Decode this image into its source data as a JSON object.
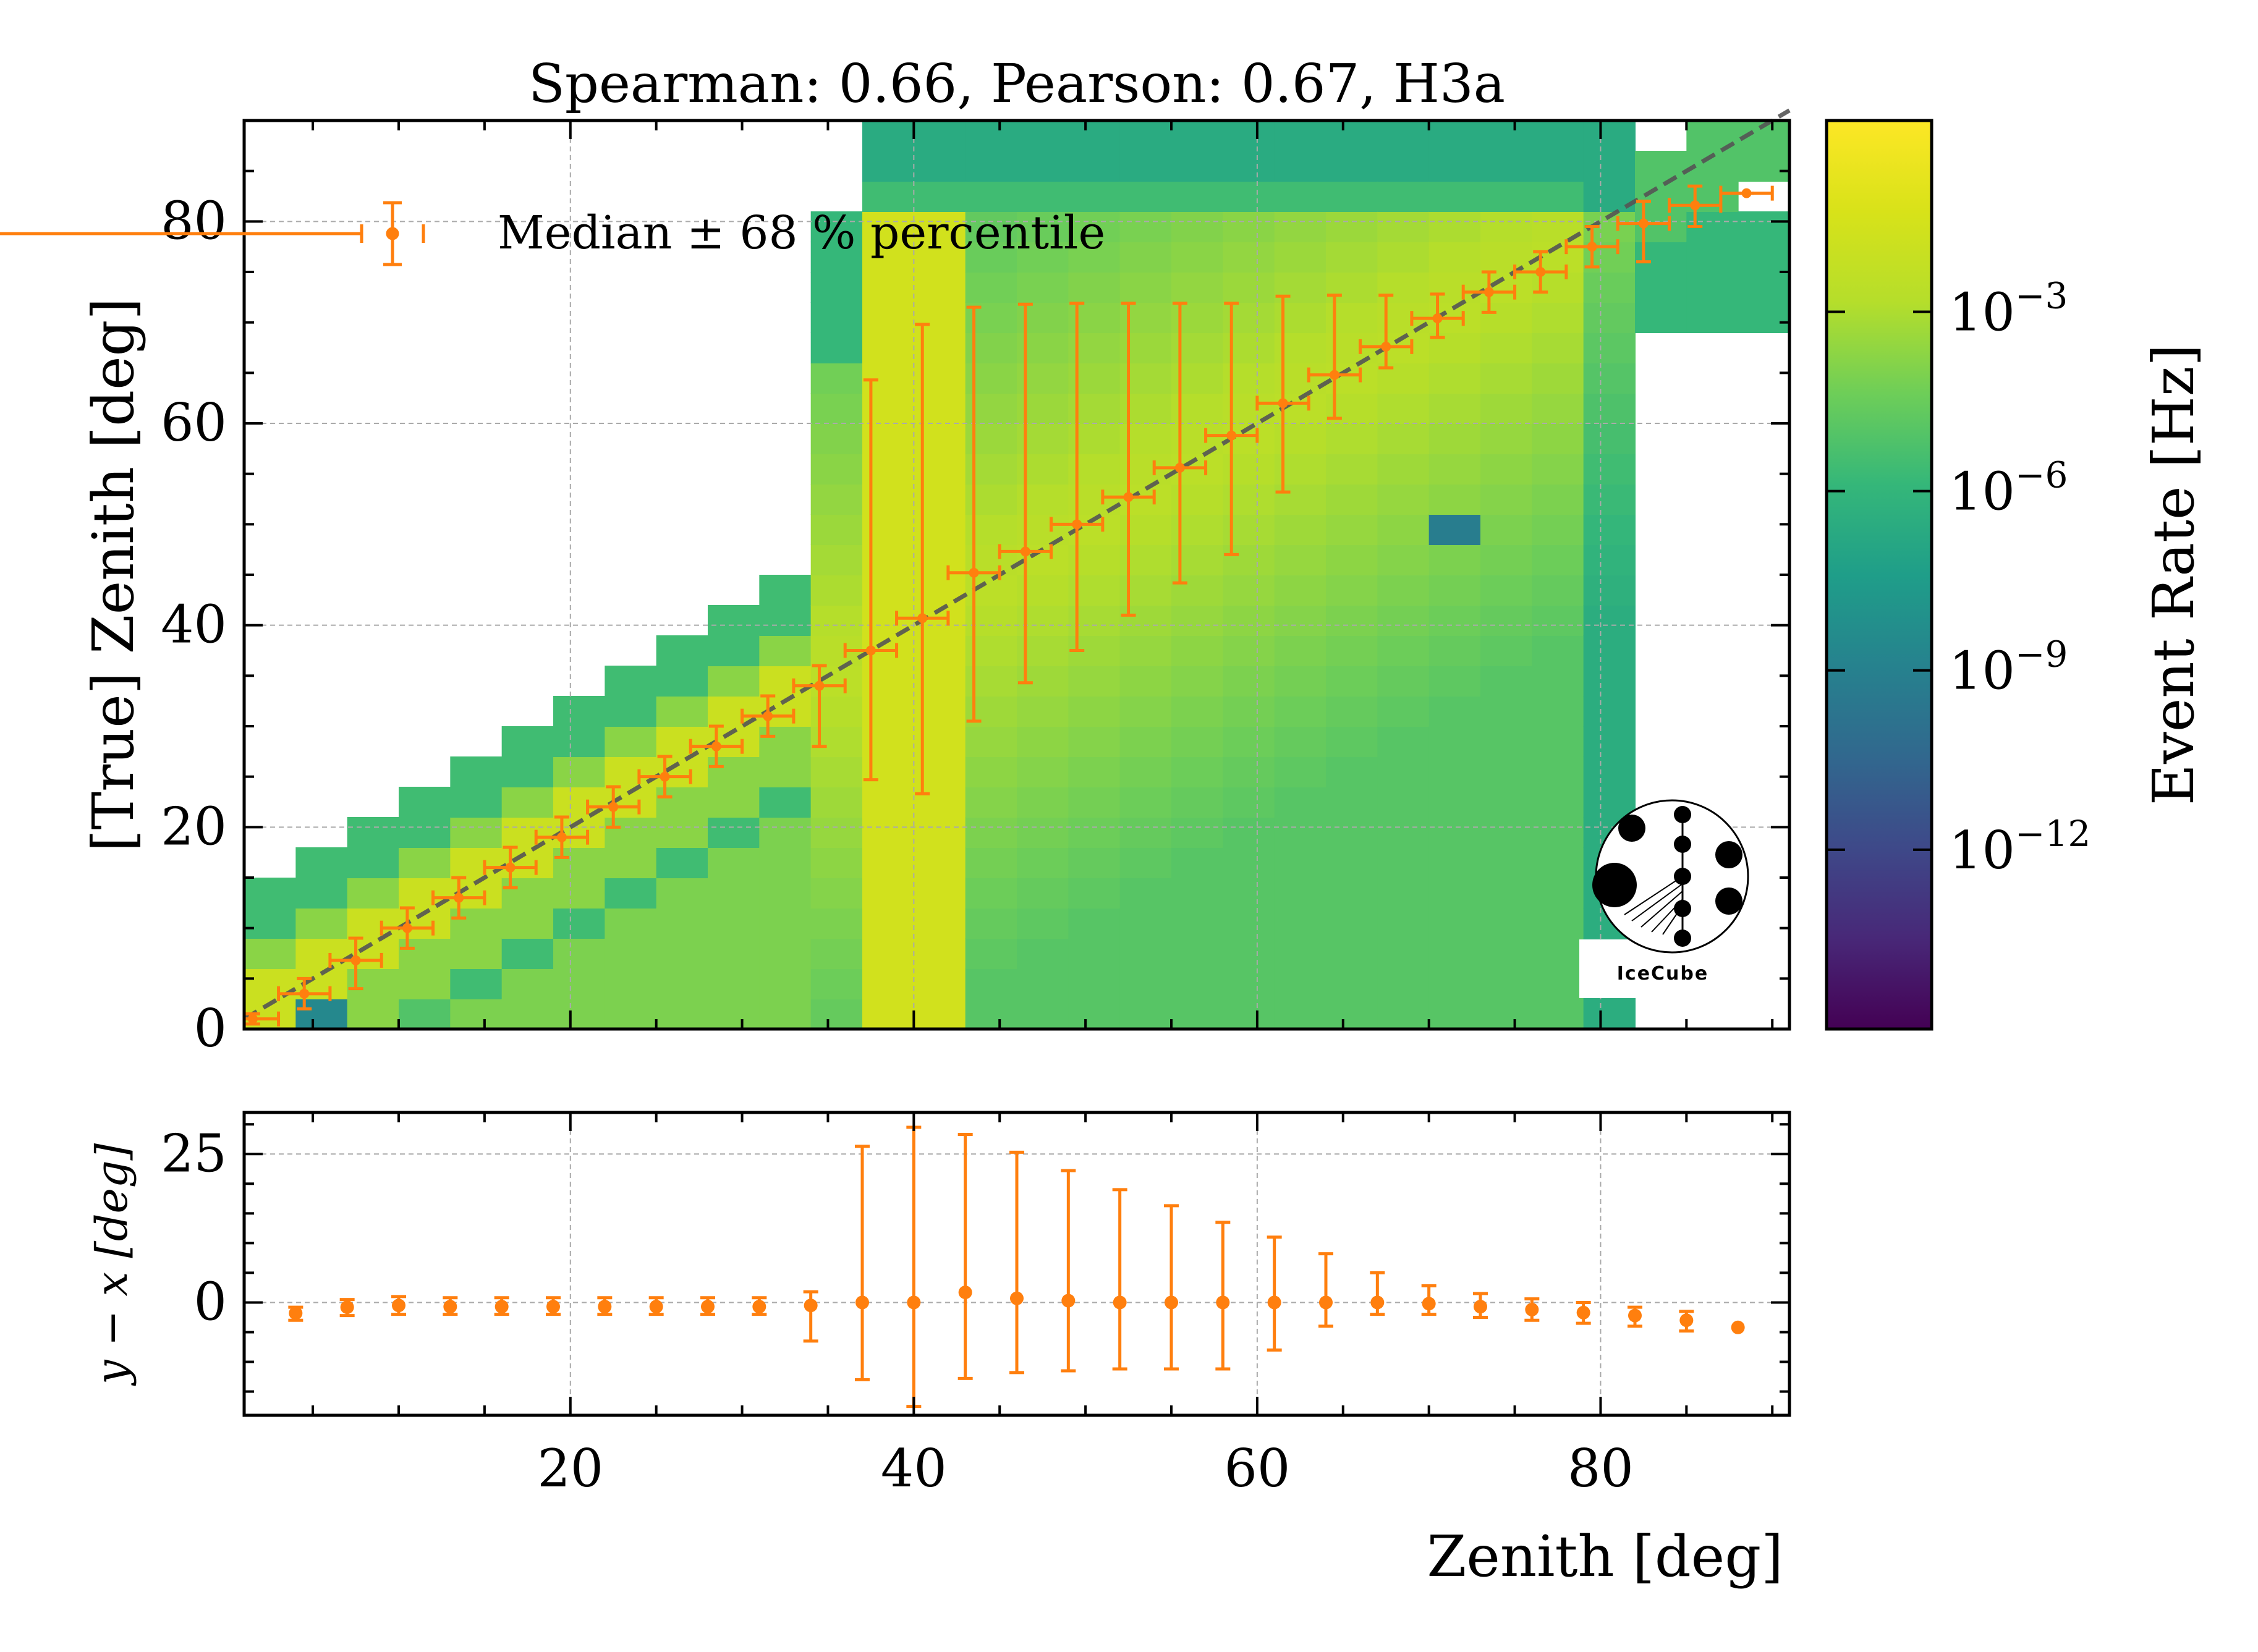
{
  "chart_data": [
    {
      "type": "heatmap",
      "title": "Spearman: 0.66, Pearson: 0.67, H3a",
      "xlabel": "",
      "ylabel": "[True] Zenith [deg]",
      "xlim": [
        1,
        91
      ],
      "ylim": [
        0,
        90
      ],
      "x_ticks": [
        20,
        40,
        60,
        80
      ],
      "y_ticks": [
        0,
        20,
        40,
        60,
        80
      ],
      "y_tick_labels": [
        "0",
        "20",
        "40",
        "60",
        "80"
      ],
      "grid": true,
      "colorbar": {
        "label": "Event Rate [Hz]",
        "scale": "log",
        "range_log10": [
          -15,
          0.2
        ],
        "ticks": [
          "10^-3",
          "10^-6",
          "10^-9",
          "10^-12"
        ],
        "tick_values_log10": [
          -3,
          -6,
          -9,
          -12
        ],
        "colormap": "viridis"
      },
      "legend": {
        "label": "Median ± 68 % percentile",
        "position": "upper-left"
      },
      "diagonal": {
        "from": [
          1,
          1
        ],
        "to": [
          91,
          91
        ],
        "color": "#555555",
        "style": "dashed"
      },
      "marker_color": "#ff7f0e",
      "series": [
        {
          "name": "Median ± 68 % percentile",
          "x": [
            1.5,
            4.5,
            7.5,
            10.5,
            13.5,
            16.5,
            19.5,
            22.5,
            25.5,
            28.5,
            31.5,
            34.5,
            37.5,
            40.5,
            43.5,
            46.5,
            49.5,
            52.5,
            55.5,
            58.5,
            61.5,
            64.5,
            67.5,
            70.5,
            73.5,
            76.5,
            79.5,
            82.5,
            85.5,
            88.5
          ],
          "xerr": [
            1.5,
            1.5,
            1.5,
            1.5,
            1.5,
            1.5,
            1.5,
            1.5,
            1.5,
            1.5,
            1.5,
            1.5,
            1.5,
            1.5,
            1.5,
            1.5,
            1.5,
            1.5,
            1.5,
            1.5,
            1.5,
            1.5,
            1.5,
            1.5,
            1.5,
            1.5,
            1.5,
            1.5,
            1.5,
            1.5
          ],
          "y": [
            1.0,
            3.5,
            6.8,
            10.0,
            13.0,
            16.0,
            19.0,
            22.0,
            25.0,
            28.0,
            31.0,
            34.0,
            37.5,
            40.7,
            45.2,
            47.3,
            50.0,
            52.7,
            55.6,
            58.8,
            62.0,
            64.8,
            67.6,
            70.4,
            73.0,
            75.0,
            77.5,
            79.8,
            81.6,
            82.8
          ],
          "y_lo": [
            0.5,
            2.0,
            4.0,
            8.0,
            11.0,
            14.0,
            17.0,
            20.0,
            23.0,
            26.0,
            29.0,
            28.0,
            24.7,
            23.3,
            30.5,
            34.3,
            37.5,
            41.0,
            44.2,
            47.0,
            53.2,
            60.5,
            65.5,
            68.5,
            71.0,
            73.0,
            75.5,
            76.0,
            79.5,
            82.8
          ],
          "y_hi": [
            1.5,
            5.0,
            9.0,
            12.0,
            15.0,
            18.0,
            21.0,
            24.0,
            27.0,
            30.0,
            33.0,
            36.0,
            64.3,
            69.8,
            71.5,
            71.8,
            71.9,
            71.9,
            71.9,
            71.9,
            72.6,
            72.7,
            72.7,
            72.8,
            75.0,
            77.0,
            79.5,
            82.0,
            83.5,
            82.8
          ]
        }
      ]
    },
    {
      "type": "scatter",
      "xlabel": "Zenith [deg]",
      "ylabel": "y − x [deg]",
      "xlim": [
        1,
        91
      ],
      "ylim": [
        -19,
        32
      ],
      "x_ticks": [
        20,
        40,
        60,
        80
      ],
      "x_tick_labels": [
        "20",
        "40",
        "60",
        "80"
      ],
      "y_ticks": [
        0,
        25
      ],
      "y_tick_labels": [
        "0",
        "25"
      ],
      "grid": true,
      "series": [
        {
          "name": "Median ± 68 % percentile",
          "x": [
            4.0,
            7.0,
            10.0,
            13.0,
            16.0,
            19.0,
            22.0,
            25.0,
            28.0,
            31.0,
            34.0,
            37.0,
            40.0,
            43.0,
            46.0,
            49.0,
            52.0,
            55.0,
            58.0,
            61.0,
            64.0,
            67.0,
            70.0,
            73.0,
            76.0,
            79.0,
            82.0,
            85.0,
            88.0
          ],
          "y": [
            -1.8,
            -0.8,
            -0.5,
            -0.7,
            -0.7,
            -0.7,
            -0.7,
            -0.7,
            -0.7,
            -0.7,
            -0.5,
            0.0,
            0.0,
            1.7,
            0.7,
            0.3,
            0.0,
            0.0,
            0.0,
            0.0,
            0.0,
            0.0,
            -0.2,
            -0.7,
            -1.2,
            -1.7,
            -2.2,
            -3.0,
            -4.2
          ],
          "y_lo": [
            -3.0,
            -2.2,
            -2.0,
            -2.0,
            -2.0,
            -2.0,
            -2.0,
            -2.0,
            -2.0,
            -2.0,
            -6.5,
            -13.0,
            -17.5,
            -12.8,
            -11.8,
            -11.5,
            -11.2,
            -11.2,
            -11.2,
            -8.0,
            -4.0,
            -2.0,
            -2.0,
            -2.5,
            -3.0,
            -3.5,
            -4.0,
            -4.8,
            -4.2
          ],
          "y_hi": [
            -0.8,
            0.5,
            1.0,
            0.8,
            0.8,
            0.8,
            0.8,
            0.8,
            0.8,
            0.8,
            1.8,
            26.3,
            29.5,
            28.3,
            25.3,
            22.2,
            19.0,
            16.3,
            13.5,
            11.0,
            8.2,
            5.0,
            2.8,
            1.5,
            0.6,
            0.0,
            -0.8,
            -1.5,
            -4.2
          ]
        }
      ]
    }
  ],
  "logo": {
    "text": "IceCube"
  }
}
